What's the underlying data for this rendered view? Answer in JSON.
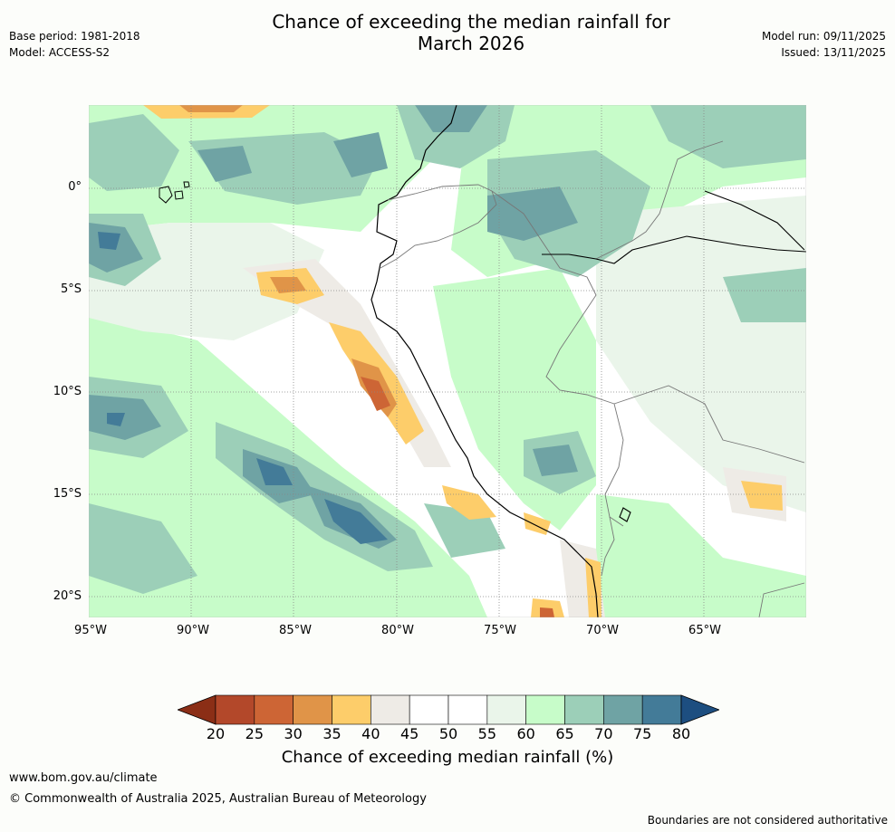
{
  "header": {
    "base_period": "Base period: 1981-2018",
    "model": "Model: ACCESS-S2",
    "title_line1": "Chance of exceeding the median rainfall for",
    "title_line2": "March 2026",
    "model_run": "Model run: 09/11/2025",
    "issued": "Issued: 13/11/2025"
  },
  "map": {
    "lat_labels": [
      "0°",
      "5°S",
      "10°S",
      "15°S",
      "20°S"
    ],
    "lon_labels": [
      "95°W",
      "90°W",
      "85°W",
      "80°W",
      "75°W",
      "70°W",
      "65°W"
    ],
    "extent": {
      "lon_min": -95,
      "lon_max": -60,
      "lat_min": -21,
      "lat_max": 4
    }
  },
  "legend": {
    "title": "Chance of exceeding median rainfall (%)",
    "ticks": [
      "20",
      "25",
      "30",
      "35",
      "40",
      "45",
      "50",
      "55",
      "60",
      "65",
      "70",
      "75",
      "80"
    ],
    "colors": [
      "#8b2e16",
      "#b3482a",
      "#cd6535",
      "#e09448",
      "#fdcd6a",
      "#eeebe6",
      "#ffffff",
      "#ffffff",
      "#eaf5ea",
      "#c7fcc9",
      "#9ccfb8",
      "#6fa3a4",
      "#437b98",
      "#1d4e80"
    ]
  },
  "footer": {
    "site": "www.bom.gov.au/climate",
    "copyright": "© Commonwealth of Australia 2025, Australian Bureau of Meteorology",
    "note": "Boundaries are not considered authoritative"
  }
}
